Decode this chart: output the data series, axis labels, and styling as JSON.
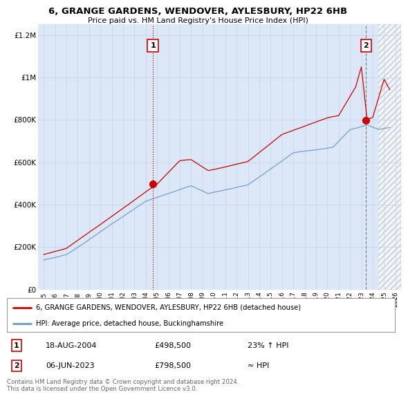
{
  "title": "6, GRANGE GARDENS, WENDOVER, AYLESBURY, HP22 6HB",
  "subtitle": "Price paid vs. HM Land Registry's House Price Index (HPI)",
  "background_color": "#ffffff",
  "grid_color": "#c8d4e8",
  "plot_bg_color": "#dce8f8",
  "ylim": [
    0,
    1250000
  ],
  "yticks": [
    0,
    200000,
    400000,
    600000,
    800000,
    1000000,
    1200000
  ],
  "ytick_labels": [
    "£0",
    "£200K",
    "£400K",
    "£600K",
    "£800K",
    "£1M",
    "£1.2M"
  ],
  "hpi_color": "#6699cc",
  "price_color": "#cc0000",
  "marker1_x": 2004.625,
  "marker1_y": 498500,
  "marker2_x": 2023.42,
  "marker2_y": 798500,
  "vline1_x": 2004.625,
  "vline2_x": 2023.42,
  "legend_label1": "6, GRANGE GARDENS, WENDOVER, AYLESBURY, HP22 6HB (detached house)",
  "legend_label2": "HPI: Average price, detached house, Buckinghamshire",
  "annotation1_date": "18-AUG-2004",
  "annotation1_price": "£498,500",
  "annotation1_hpi": "23% ↑ HPI",
  "annotation2_date": "06-JUN-2023",
  "annotation2_price": "£798,500",
  "annotation2_hpi": "≈ HPI",
  "footnote": "Contains HM Land Registry data © Crown copyright and database right 2024.\nThis data is licensed under the Open Government Licence v3.0.",
  "xmin": 1994.5,
  "xmax": 2026.5,
  "hatch_start": 2024.5,
  "xticks": [
    1995,
    1996,
    1997,
    1998,
    1999,
    2000,
    2001,
    2002,
    2003,
    2004,
    2005,
    2006,
    2007,
    2008,
    2009,
    2010,
    2011,
    2012,
    2013,
    2014,
    2015,
    2016,
    2017,
    2018,
    2019,
    2020,
    2021,
    2022,
    2023,
    2024,
    2025,
    2026
  ]
}
